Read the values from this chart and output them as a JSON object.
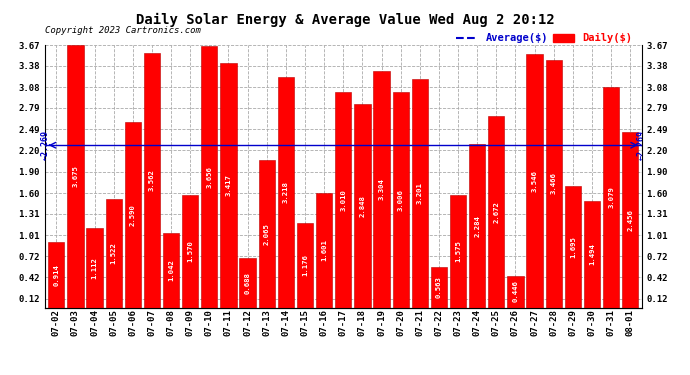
{
  "title": "Daily Solar Energy & Average Value Wed Aug 2 20:12",
  "copyright": "Copyright 2023 Cartronics.com",
  "legend_average": "Average($)",
  "legend_daily": "Daily($)",
  "average_value": 2.269,
  "categories": [
    "07-02",
    "07-03",
    "07-04",
    "07-05",
    "07-06",
    "07-07",
    "07-08",
    "07-09",
    "07-10",
    "07-11",
    "07-12",
    "07-13",
    "07-14",
    "07-15",
    "07-16",
    "07-17",
    "07-18",
    "07-19",
    "07-20",
    "07-21",
    "07-22",
    "07-23",
    "07-24",
    "07-25",
    "07-26",
    "07-27",
    "07-28",
    "07-29",
    "07-30",
    "07-31",
    "08-01"
  ],
  "values": [
    0.914,
    3.675,
    1.112,
    1.522,
    2.59,
    3.562,
    1.042,
    1.57,
    3.656,
    3.417,
    0.688,
    2.065,
    3.218,
    1.176,
    1.601,
    3.01,
    2.848,
    3.304,
    3.006,
    3.201,
    0.563,
    1.575,
    2.284,
    2.672,
    0.446,
    3.546,
    3.466,
    1.695,
    1.494,
    3.079,
    2.456
  ],
  "bar_color": "#FF0000",
  "bar_edge_color": "#BB0000",
  "avg_line_color": "#0000CC",
  "avg_label_color": "#0000CC",
  "daily_label_color": "#FF0000",
  "title_color": "#000000",
  "copyright_color": "#000000",
  "background_color": "#FFFFFF",
  "grid_color": "#AAAAAA",
  "ylim_min": 0.0,
  "ylim_max": 3.67,
  "yticks": [
    0.12,
    0.42,
    0.72,
    1.01,
    1.31,
    1.6,
    1.9,
    2.2,
    2.49,
    2.79,
    3.08,
    3.38,
    3.67
  ],
  "value_label_fontsize": 5.2,
  "axis_tick_fontsize": 6.5,
  "title_fontsize": 10,
  "copyright_fontsize": 6.5,
  "legend_fontsize": 7.5
}
